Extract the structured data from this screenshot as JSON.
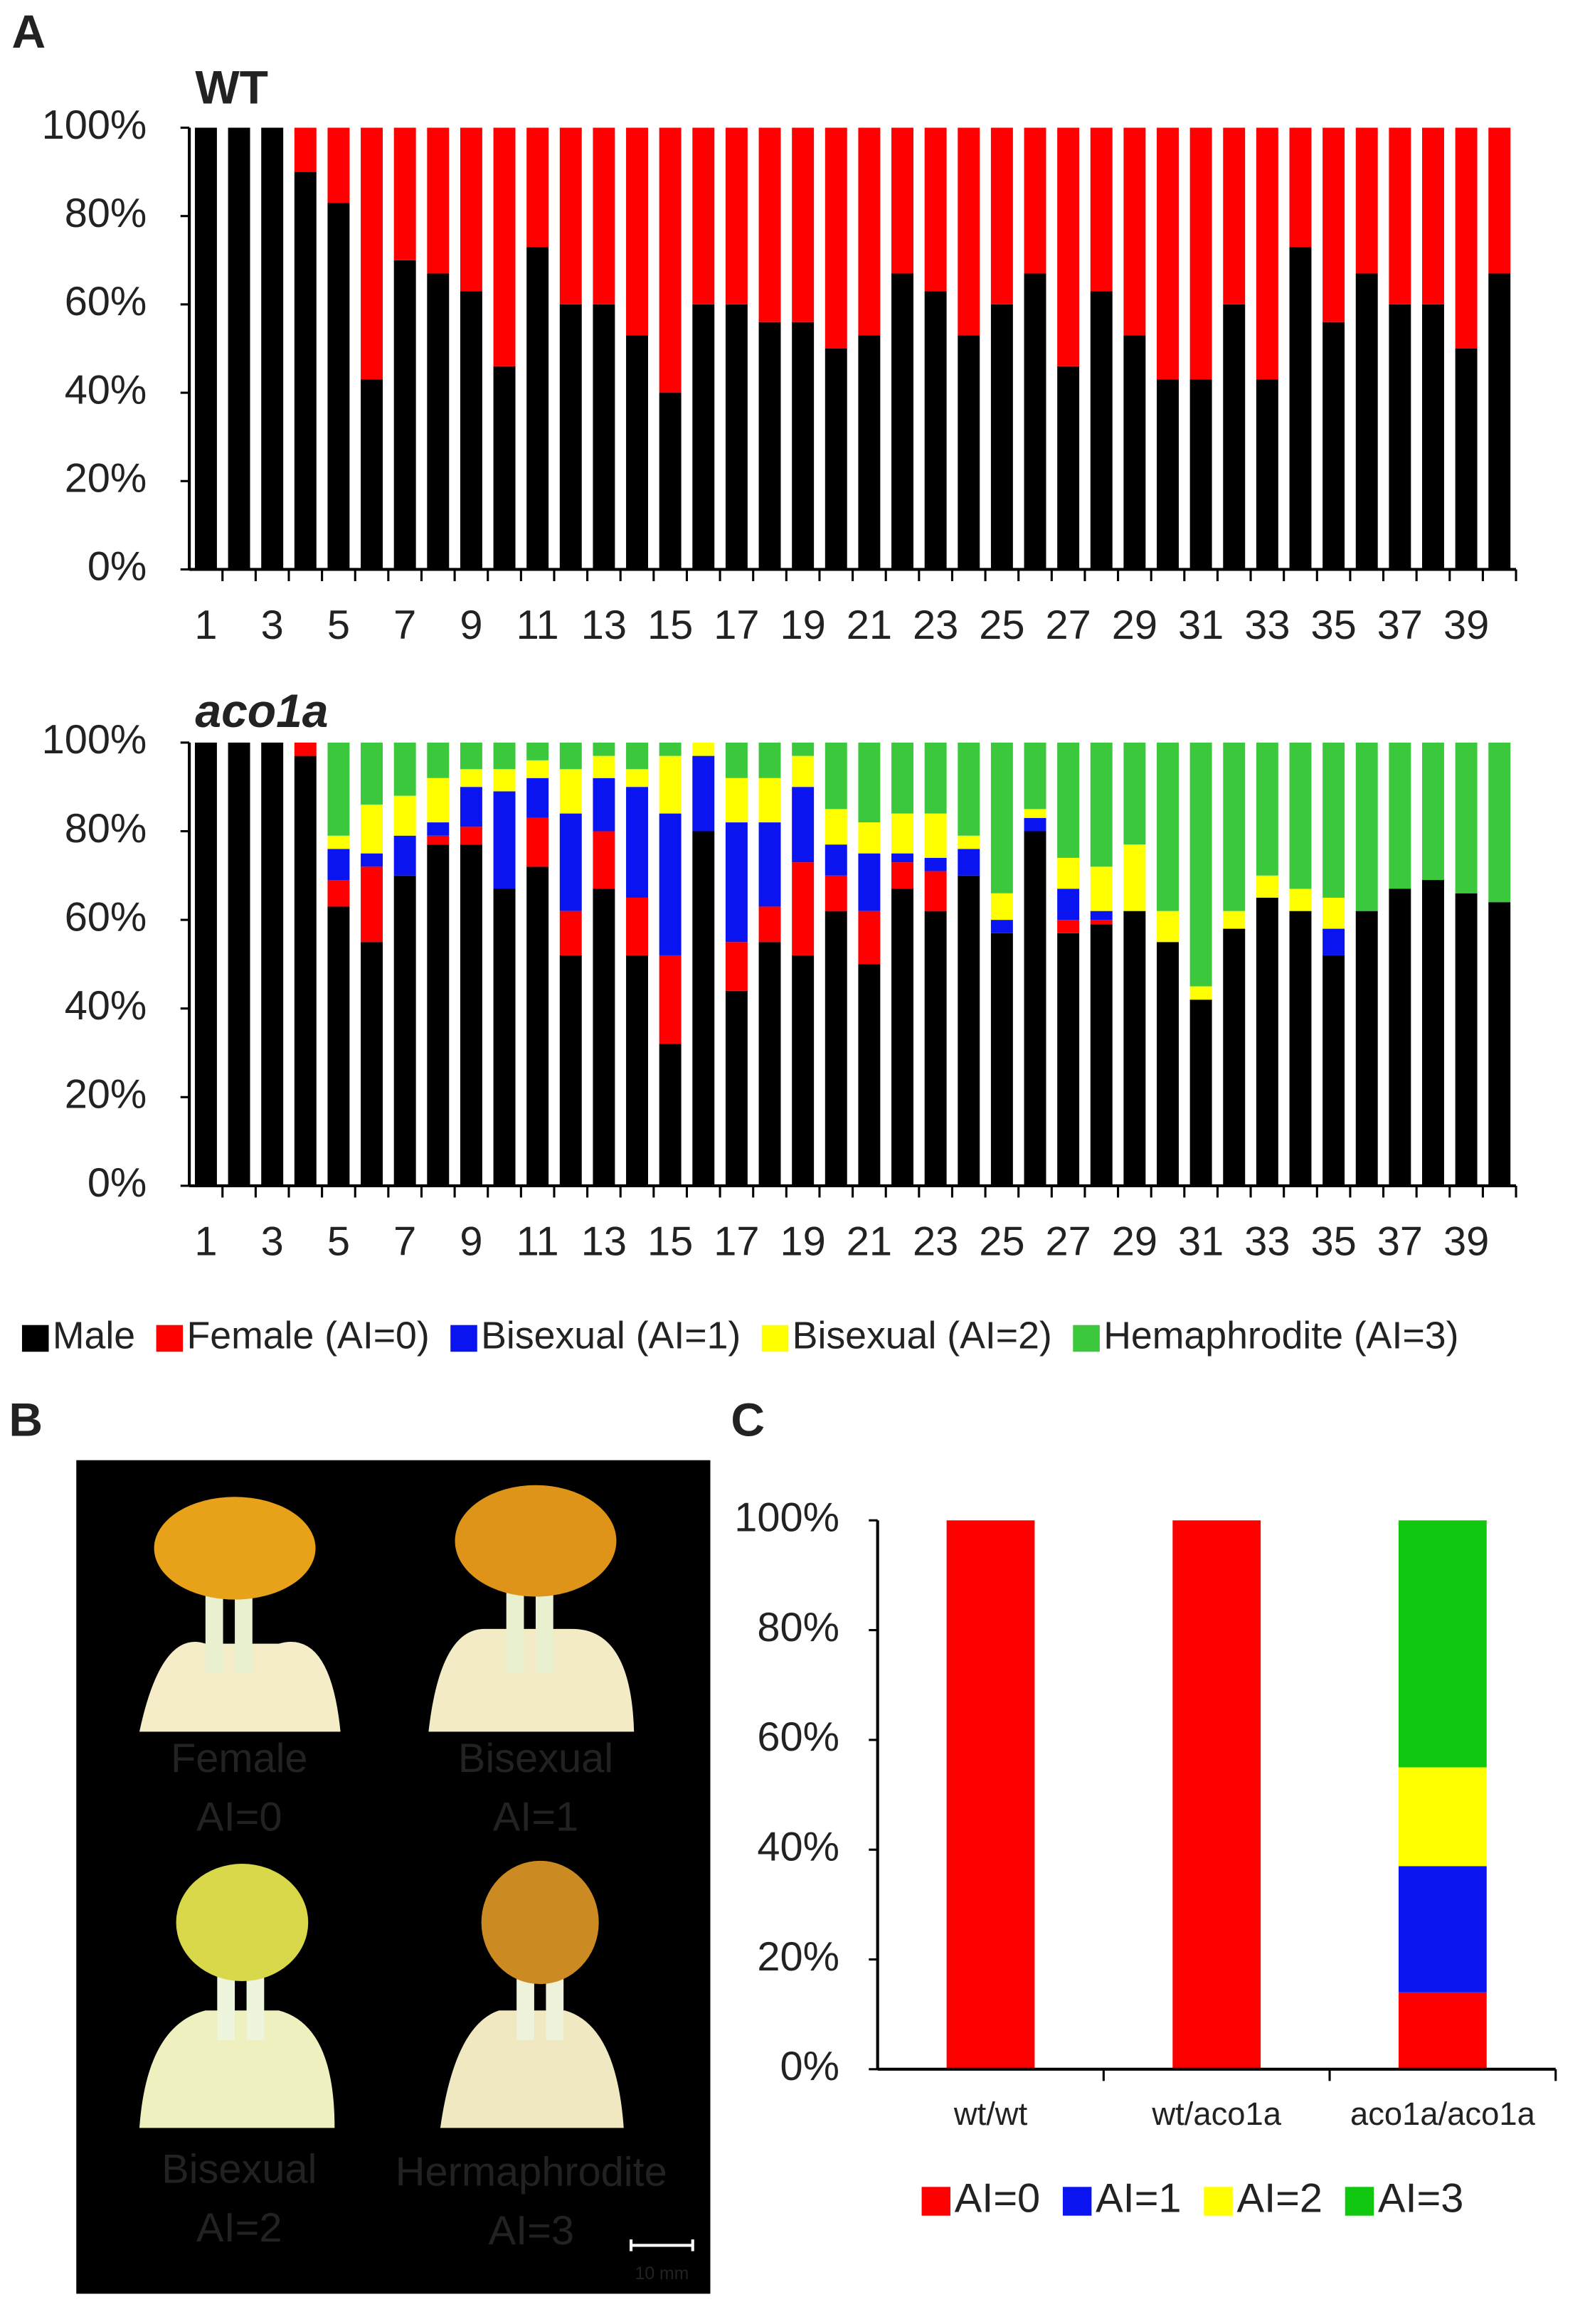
{
  "panel_labels": [
    "A",
    "B",
    "C"
  ],
  "photo": {
    "labels": [
      [
        "Female",
        "AI=0"
      ],
      [
        "Bisexual",
        "AI=1"
      ],
      [
        "Bisexual",
        "AI=2"
      ],
      [
        "Hermaphrodite",
        "AI=3"
      ]
    ],
    "scale_bar": "10 mm"
  },
  "chart_data": [
    {
      "type": "bar",
      "stacked": true,
      "title": "WT",
      "categories": [
        "1",
        null,
        "3",
        null,
        "5",
        null,
        "7",
        null,
        "9",
        null,
        "11",
        null,
        "13",
        null,
        "15",
        null,
        "17",
        null,
        "19",
        null,
        "21",
        null,
        "23",
        null,
        "25",
        null,
        "27",
        null,
        "29",
        null,
        "31",
        null,
        "33",
        null,
        "35",
        null,
        "37",
        null,
        "39",
        null
      ],
      "series": [
        {
          "color": "#000000",
          "values": [
            100,
            100,
            100,
            90,
            83,
            43,
            70,
            67,
            63,
            46,
            73,
            60,
            60,
            53,
            40,
            60,
            60,
            56,
            56,
            50,
            53,
            67,
            63,
            53,
            60,
            67,
            46,
            63,
            53,
            43,
            43,
            60,
            43,
            73,
            56,
            67,
            60,
            60,
            50,
            67
          ]
        },
        {
          "color": "#ff0000",
          "values": [
            0,
            0,
            0,
            10,
            17,
            57,
            30,
            33,
            37,
            54,
            27,
            40,
            40,
            47,
            60,
            40,
            40,
            44,
            44,
            50,
            47,
            33,
            37,
            47,
            40,
            33,
            54,
            37,
            47,
            57,
            57,
            40,
            57,
            27,
            44,
            33,
            40,
            40,
            50,
            33
          ]
        }
      ],
      "ylim": [
        0,
        100
      ],
      "yticks": [
        {
          "value": 0,
          "label": "0%"
        },
        {
          "value": 20,
          "label": "20%"
        },
        {
          "value": 40,
          "label": "40%"
        },
        {
          "value": 60,
          "label": "60%"
        },
        {
          "value": 80,
          "label": "80%"
        },
        {
          "value": 100,
          "label": "100%"
        }
      ]
    },
    {
      "type": "bar",
      "stacked": true,
      "title": "aco1a",
      "categories": [
        "1",
        null,
        "3",
        null,
        "5",
        null,
        "7",
        null,
        "9",
        null,
        "11",
        null,
        "13",
        null,
        "15",
        null,
        "17",
        null,
        "19",
        null,
        "21",
        null,
        "23",
        null,
        "25",
        null,
        "27",
        null,
        "29",
        null,
        "31",
        null,
        "33",
        null,
        "35",
        null,
        "37",
        null,
        "39",
        null
      ],
      "series": [
        {
          "name": "Male",
          "color": "#000000",
          "values": [
            100,
            100,
            100,
            97,
            63,
            55,
            70,
            77,
            77,
            67,
            72,
            52,
            67,
            52,
            32,
            80,
            44,
            55,
            52,
            62,
            50,
            67,
            62,
            70,
            57,
            80,
            57,
            59,
            62,
            55,
            42,
            58,
            65,
            62,
            52,
            62,
            67,
            69,
            66,
            64
          ]
        },
        {
          "name": "Female (AI=0)",
          "color": "#ff0000",
          "values": [
            0,
            0,
            0,
            3,
            6,
            17,
            0,
            2,
            4,
            0,
            11,
            10,
            13,
            13,
            20,
            0,
            11,
            8,
            21,
            8,
            12,
            6,
            9,
            0,
            0,
            0,
            3,
            1,
            0,
            0,
            0,
            0,
            0,
            0,
            0,
            0,
            0,
            0,
            0,
            0
          ]
        },
        {
          "name": "Bisexual (AI=1)",
          "color": "#0a14f0",
          "values": [
            0,
            0,
            0,
            0,
            7,
            3,
            9,
            3,
            9,
            22,
            9,
            22,
            12,
            25,
            32,
            17,
            27,
            19,
            17,
            7,
            13,
            2,
            3,
            6,
            3,
            3,
            7,
            2,
            0,
            0,
            0,
            0,
            0,
            0,
            6,
            0,
            0,
            0,
            0,
            0
          ]
        },
        {
          "name": "Bisexual (AI=2)",
          "color": "#ffff00",
          "values": [
            0,
            0,
            0,
            0,
            3,
            11,
            9,
            10,
            4,
            5,
            4,
            10,
            5,
            4,
            13,
            3,
            10,
            10,
            7,
            8,
            7,
            9,
            10,
            3,
            6,
            2,
            7,
            10,
            15,
            7,
            3,
            4,
            5,
            5,
            7,
            0,
            0,
            0,
            0,
            0
          ]
        },
        {
          "name": "Hemaphrodite (AI=3)",
          "color": "#3cc83c",
          "values": [
            0,
            0,
            0,
            0,
            21,
            14,
            12,
            8,
            6,
            6,
            4,
            6,
            3,
            6,
            3,
            0,
            8,
            8,
            3,
            15,
            18,
            16,
            16,
            21,
            34,
            15,
            26,
            28,
            23,
            38,
            55,
            38,
            30,
            33,
            35,
            38,
            33,
            31,
            34,
            36
          ]
        }
      ],
      "ylim": [
        0,
        100
      ],
      "yticks": [
        {
          "value": 0,
          "label": "0%"
        },
        {
          "value": 20,
          "label": "20%"
        },
        {
          "value": 40,
          "label": "40%"
        },
        {
          "value": 60,
          "label": "60%"
        },
        {
          "value": 80,
          "label": "80%"
        },
        {
          "value": 100,
          "label": "100%"
        }
      ]
    },
    {
      "type": "bar",
      "stacked": true,
      "categories": [
        "wt/wt",
        "wt/aco1a",
        "aco1a/aco1a"
      ],
      "series": [
        {
          "name": "AI=0",
          "color": "#ff0000",
          "values": [
            100,
            100,
            14
          ]
        },
        {
          "name": "AI=1",
          "color": "#0a14f0",
          "values": [
            0,
            0,
            23
          ]
        },
        {
          "name": "AI=2",
          "color": "#ffff00",
          "values": [
            0,
            0,
            18
          ]
        },
        {
          "name": "AI=3",
          "color": "#11c811",
          "values": [
            0,
            0,
            45
          ]
        }
      ],
      "ylim": [
        0,
        100
      ],
      "yticks": [
        {
          "value": 0,
          "label": "0%"
        },
        {
          "value": 20,
          "label": "20%"
        },
        {
          "value": 40,
          "label": "40%"
        },
        {
          "value": 60,
          "label": "60%"
        },
        {
          "value": 80,
          "label": "80%"
        },
        {
          "value": 100,
          "label": "100%"
        }
      ]
    }
  ]
}
